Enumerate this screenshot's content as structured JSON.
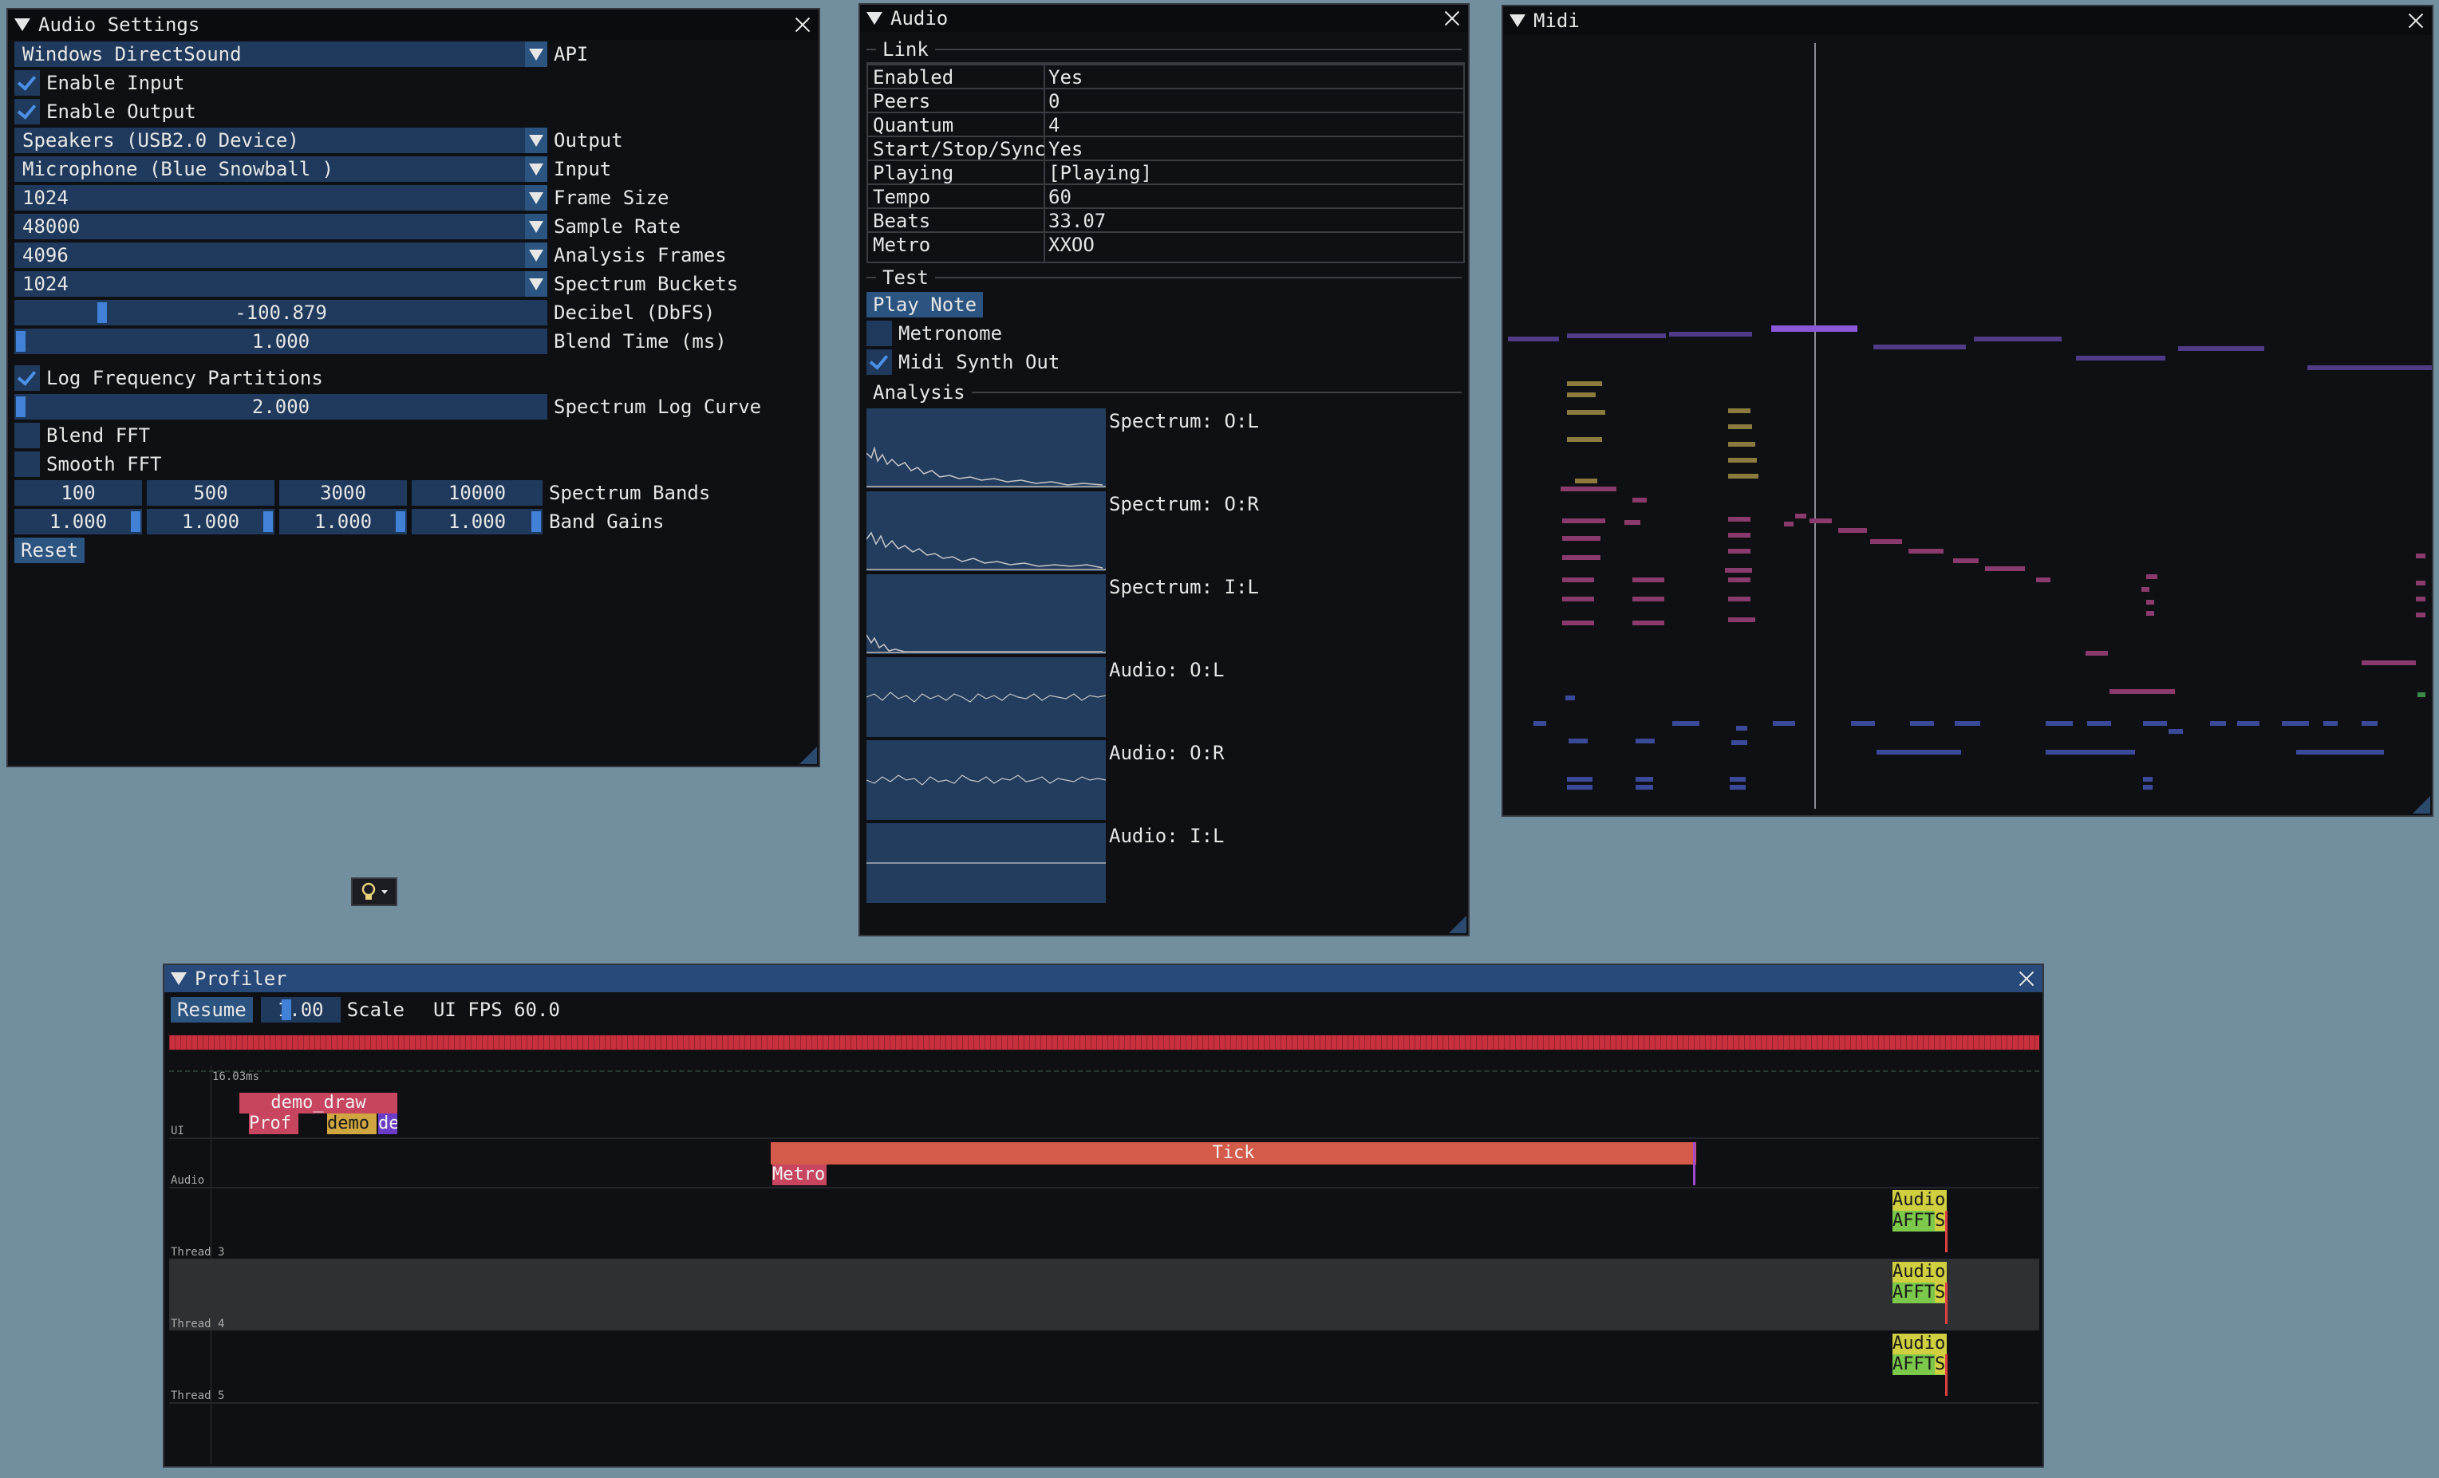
{
  "audio_settings": {
    "title": "Audio Settings",
    "api_value": "Windows DirectSound",
    "api_label": "API",
    "enable_input": "Enable Input",
    "enable_output": "Enable Output",
    "output_value": "Speakers (USB2.0 Device)",
    "output_label": "Output",
    "input_value": "Microphone (Blue Snowball )",
    "input_label": "Input",
    "frame_size_value": "1024",
    "frame_size_label": "Frame Size",
    "sample_rate_value": "48000",
    "sample_rate_label": "Sample Rate",
    "analysis_frames_value": "4096",
    "analysis_frames_label": "Analysis Frames",
    "spectrum_buckets_value": "1024",
    "spectrum_buckets_label": "Spectrum Buckets",
    "decibel_value": "-100.879",
    "decibel_label": "Decibel (DbFS)",
    "blend_time_value": "1.000",
    "blend_time_label": "Blend Time (ms)",
    "log_freq": "Log Frequency Partitions",
    "log_curve_value": "2.000",
    "log_curve_label": "Spectrum Log Curve",
    "blend_fft": "Blend FFT",
    "smooth_fft": "Smooth FFT",
    "bands": [
      "100",
      "500",
      "3000",
      "10000"
    ],
    "bands_label": "Spectrum Bands",
    "gains": [
      "1.000",
      "1.000",
      "1.000",
      "1.000"
    ],
    "gains_label": "Band Gains",
    "reset": "Reset"
  },
  "audio": {
    "title": "Audio",
    "link_header": "Link",
    "link_rows": [
      {
        "k": "Enabled",
        "v": "Yes"
      },
      {
        "k": "Peers",
        "v": "0"
      },
      {
        "k": "Quantum",
        "v": "4"
      },
      {
        "k": "Start/Stop/Sync",
        "v": "Yes"
      },
      {
        "k": "Playing",
        "v": "[Playing]"
      },
      {
        "k": "Tempo",
        "v": "60"
      },
      {
        "k": "Beats",
        "v": "33.07"
      },
      {
        "k": "Metro",
        "v": "XXOO"
      }
    ],
    "test_header": "Test",
    "play_note": "Play Note",
    "metronome": "Metronome",
    "midi_synth_out": "Midi Synth Out",
    "analysis_header": "Analysis",
    "plots": [
      "Spectrum: O:L",
      "Spectrum: O:R",
      "Spectrum: I:L",
      "Audio: O:L",
      "Audio: O:R",
      "Audio: I:L"
    ]
  },
  "midi": {
    "title": "Midi"
  },
  "profiler": {
    "title": "Profiler",
    "resume": "Resume",
    "scale_value": "1.00",
    "scale_label": "Scale",
    "fps": "UI FPS 60.0",
    "time_marker": "16.03ms",
    "threads": [
      "UI",
      "Audio",
      "Thread 3",
      "Thread 4",
      "Thread 5"
    ],
    "blocks": {
      "demo_draw": "demo_draw",
      "prof": "Prof",
      "demo": "demo",
      "de": "de",
      "tick": "Tick",
      "metro": "Metro",
      "audio": "Audio",
      "fft": "FFT",
      "fft_a": "A",
      "fft_s": "S"
    }
  },
  "colors": {
    "background": "#728fa0",
    "window_bg": "#0f1014",
    "frame": "#1f3a5c",
    "accent": "#4182d8",
    "profiler_bar": "#c9303d"
  },
  "icons": {
    "floating": "lightbulb-icon"
  }
}
